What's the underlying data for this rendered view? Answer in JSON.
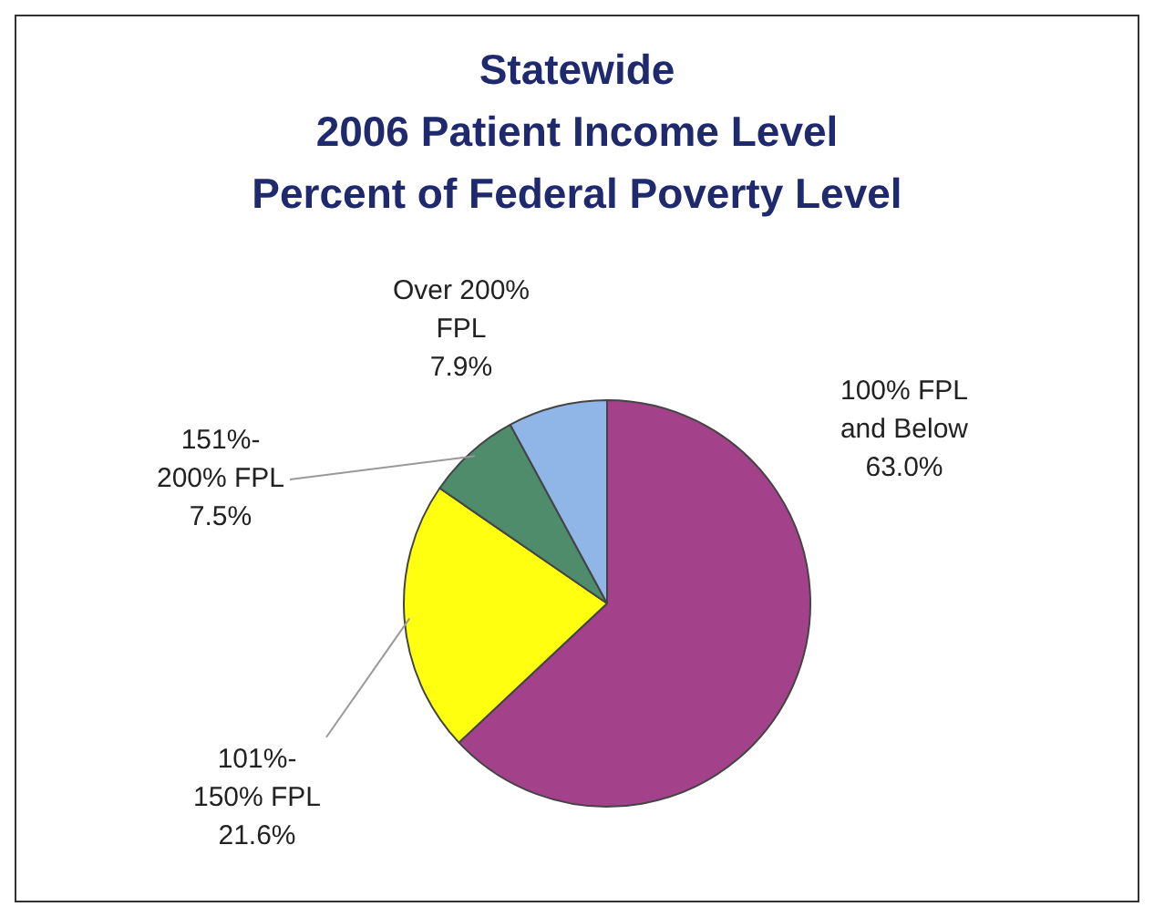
{
  "chart_data": {
    "type": "pie",
    "title": "Statewide",
    "subtitle": "2006 Patient Income Level Percent of Federal Poverty Level",
    "categories": [
      "100% FPL and Below",
      "101%-150% FPL",
      "151%-200% FPL",
      "Over 200% FPL"
    ],
    "values": [
      63.0,
      21.6,
      7.5,
      7.9
    ],
    "value_labels": [
      "63.0%",
      "21.6%",
      "7.5%",
      "7.9%"
    ],
    "colors": [
      "#a3418b",
      "#ffff10",
      "#4e8c6c",
      "#8fb6e6"
    ],
    "legend": false
  }
}
